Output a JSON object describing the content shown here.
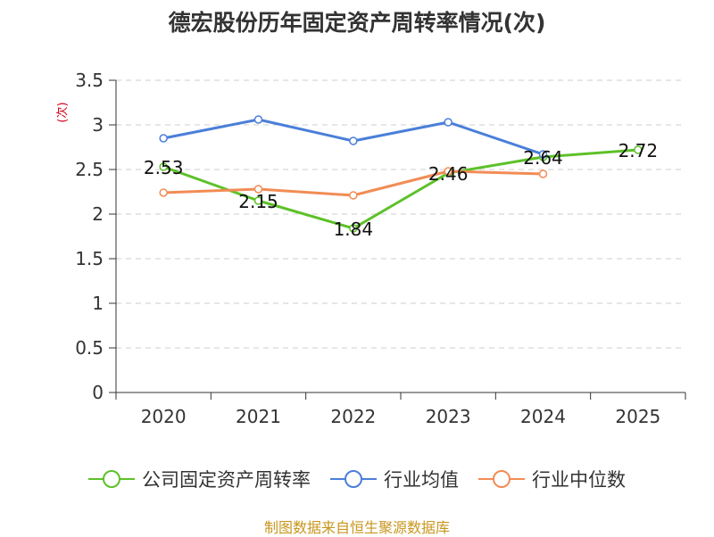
{
  "chart_data": {
    "type": "line",
    "title": "德宏股份历年固定资产周转率情况(次)",
    "ylabel": "(次)",
    "xlabel": "",
    "categories": [
      "2020",
      "2021",
      "2022",
      "2023",
      "2024",
      "2025"
    ],
    "ylim": [
      0,
      3.5
    ],
    "yticks": [
      "0",
      "0.5",
      "1",
      "1.5",
      "2",
      "2.5",
      "3",
      "3.5"
    ],
    "grid": true,
    "legend_position": "bottom",
    "series": [
      {
        "name": "公司固定资产周转率",
        "color": "#5dc129",
        "values": [
          2.53,
          2.15,
          1.84,
          2.46,
          2.64,
          2.72
        ],
        "labels": [
          "2.53",
          "2.15",
          "1.84",
          "2.46",
          "2.64",
          "2.72"
        ]
      },
      {
        "name": "行业均值",
        "color": "#4a7fd9",
        "values": [
          2.85,
          3.06,
          2.82,
          3.03,
          2.67,
          null
        ]
      },
      {
        "name": "行业中位数",
        "color": "#f28c55",
        "values": [
          2.24,
          2.28,
          2.21,
          2.48,
          2.45,
          null
        ]
      }
    ]
  },
  "source": "制图数据来自恒生聚源数据库"
}
